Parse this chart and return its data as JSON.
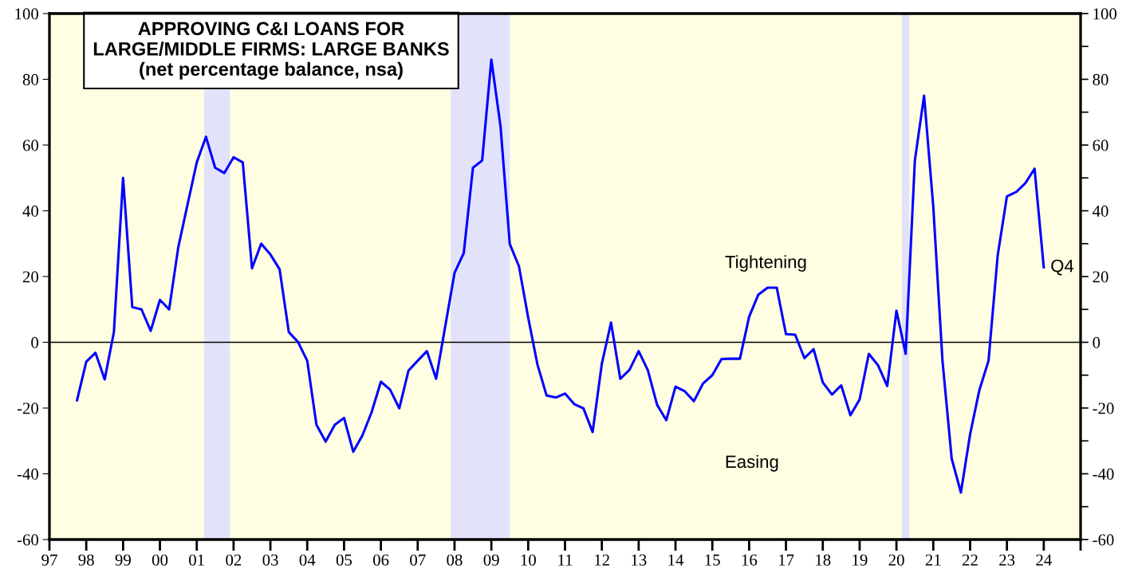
{
  "chart_data": {
    "type": "line",
    "title": "APPROVING C&I LOANS FOR\nLARGE/MIDDLE FIRMS: LARGE BANKS\n(net percentage balance, nsa)",
    "x": [
      1997.75,
      1998.0,
      1998.25,
      1998.5,
      1998.75,
      1999.0,
      1999.25,
      1999.5,
      1999.75,
      2000.0,
      2000.25,
      2000.5,
      2000.75,
      2001.0,
      2001.25,
      2001.5,
      2001.75,
      2002.0,
      2002.25,
      2002.5,
      2002.75,
      2003.0,
      2003.25,
      2003.5,
      2003.75,
      2004.0,
      2004.25,
      2004.5,
      2004.75,
      2005.0,
      2005.25,
      2005.5,
      2005.75,
      2006.0,
      2006.25,
      2006.5,
      2006.75,
      2007.0,
      2007.25,
      2007.5,
      2007.75,
      2008.0,
      2008.25,
      2008.5,
      2008.75,
      2009.0,
      2009.25,
      2009.5,
      2009.75,
      2010.0,
      2010.25,
      2010.5,
      2010.75,
      2011.0,
      2011.25,
      2011.5,
      2011.75,
      2012.0,
      2012.25,
      2012.5,
      2012.75,
      2013.0,
      2013.25,
      2013.5,
      2013.75,
      2014.0,
      2014.25,
      2014.5,
      2014.75,
      2015.0,
      2015.25,
      2015.5,
      2015.75,
      2016.0,
      2016.25,
      2016.5,
      2016.75,
      2017.0,
      2017.25,
      2017.5,
      2017.75,
      2018.0,
      2018.25,
      2018.5,
      2018.75,
      2019.0,
      2019.25,
      2019.5,
      2019.75,
      2020.0,
      2020.25,
      2020.5,
      2020.75,
      2021.0,
      2021.25,
      2021.5,
      2021.75,
      2022.0,
      2022.25,
      2022.5,
      2022.75,
      2023.0,
      2023.25,
      2023.5,
      2023.75,
      2024.0
    ],
    "series": [
      {
        "color": "#0000ff",
        "values": [
          -17.6,
          -5.9,
          -3.2,
          -11.3,
          3.1,
          50,
          10.7,
          10,
          3.5,
          12.9,
          10,
          29,
          41.9,
          54.7,
          62.5,
          53.1,
          51.5,
          56.3,
          54.7,
          22.5,
          30,
          26.7,
          22.2,
          3.1,
          0.1,
          -5.6,
          -25.1,
          -30.2,
          -25.1,
          -23,
          -33.3,
          -28.3,
          -21.2,
          -12,
          -14.4,
          -20.1,
          -8.6,
          -5.6,
          -2.7,
          -11.1,
          5,
          21.1,
          27.1,
          53.1,
          55.3,
          86,
          65.6,
          29.9,
          23.1,
          7.5,
          -6.7,
          -16.2,
          -16.8,
          -15.6,
          -18.8,
          -20.1,
          -27.3,
          -6.5,
          6,
          -11.1,
          -8.4,
          -2.7,
          -8.5,
          -19,
          -23.7,
          -13.5,
          -14.9,
          -17.9,
          -12.5,
          -10,
          -5.1,
          -5,
          -5,
          7.8,
          14.5,
          16.6,
          16.6,
          2.5,
          2.3,
          -4.8,
          -2.1,
          -12.2,
          -15.9,
          -13.1,
          -22.2,
          -17.4,
          -3.5,
          -7,
          -13.3,
          9.6,
          -3.5,
          55.3,
          75,
          41.3,
          -5.6,
          -35.4,
          -45.7,
          -28,
          -14.6,
          -5.6,
          26.5,
          44.4,
          45.7,
          48.4,
          52.8,
          22.8
        ]
      }
    ],
    "xlim": [
      1997,
      2025
    ],
    "xticks": [
      {
        "value": 1997,
        "label": "97"
      },
      {
        "value": 1998,
        "label": "98"
      },
      {
        "value": 1999,
        "label": "99"
      },
      {
        "value": 2000,
        "label": "00"
      },
      {
        "value": 2001,
        "label": "01"
      },
      {
        "value": 2002,
        "label": "02"
      },
      {
        "value": 2003,
        "label": "03"
      },
      {
        "value": 2004,
        "label": "04"
      },
      {
        "value": 2005,
        "label": "05"
      },
      {
        "value": 2006,
        "label": "06"
      },
      {
        "value": 2007,
        "label": "07"
      },
      {
        "value": 2008,
        "label": "08"
      },
      {
        "value": 2009,
        "label": "09"
      },
      {
        "value": 2010,
        "label": "10"
      },
      {
        "value": 2011,
        "label": "11"
      },
      {
        "value": 2012,
        "label": "12"
      },
      {
        "value": 2013,
        "label": "13"
      },
      {
        "value": 2014,
        "label": "14"
      },
      {
        "value": 2015,
        "label": "15"
      },
      {
        "value": 2016,
        "label": "16"
      },
      {
        "value": 2017,
        "label": "17"
      },
      {
        "value": 2018,
        "label": "18"
      },
      {
        "value": 2019,
        "label": "19"
      },
      {
        "value": 2020,
        "label": "20"
      },
      {
        "value": 2021,
        "label": "21"
      },
      {
        "value": 2022,
        "label": "22"
      },
      {
        "value": 2023,
        "label": "23"
      },
      {
        "value": 2024,
        "label": "24"
      },
      {
        "value": 2025,
        "label": null
      }
    ],
    "ylim": [
      -60,
      100
    ],
    "yticks": [
      -60,
      -40,
      -20,
      0,
      20,
      40,
      60,
      80,
      100
    ],
    "y2lim": [
      -60,
      100
    ],
    "y2ticks": [
      -60,
      {
        "value": -50,
        "label": null
      },
      -40,
      {
        "value": -30,
        "label": null
      },
      -20,
      {
        "value": -10,
        "label": null
      },
      0,
      {
        "value": 10,
        "label": null
      },
      20,
      {
        "value": 30,
        "label": null
      },
      40,
      {
        "value": 50,
        "label": null
      },
      60,
      {
        "value": 70,
        "label": null
      },
      80,
      {
        "value": 90,
        "label": null
      },
      100
    ],
    "ref_lines": [
      {
        "axis": "y",
        "value": 0,
        "color": "#000000"
      }
    ],
    "bands": [
      {
        "axis": "x",
        "from": 2001.2,
        "to": 2001.9,
        "color": "#e2e2fa"
      },
      {
        "axis": "x",
        "from": 2007.9,
        "to": 2009.5,
        "color": "#e2e2fa"
      },
      {
        "axis": "x",
        "from": 2020.15,
        "to": 2020.35,
        "color": "#e2e2fa"
      }
    ],
    "annotations": [
      "Tightening",
      "Easing",
      {
        "text": "Q4",
        "x": 2024.0,
        "y": 22.8
      }
    ],
    "grid": false,
    "marker": "none",
    "line_style": "solid"
  }
}
